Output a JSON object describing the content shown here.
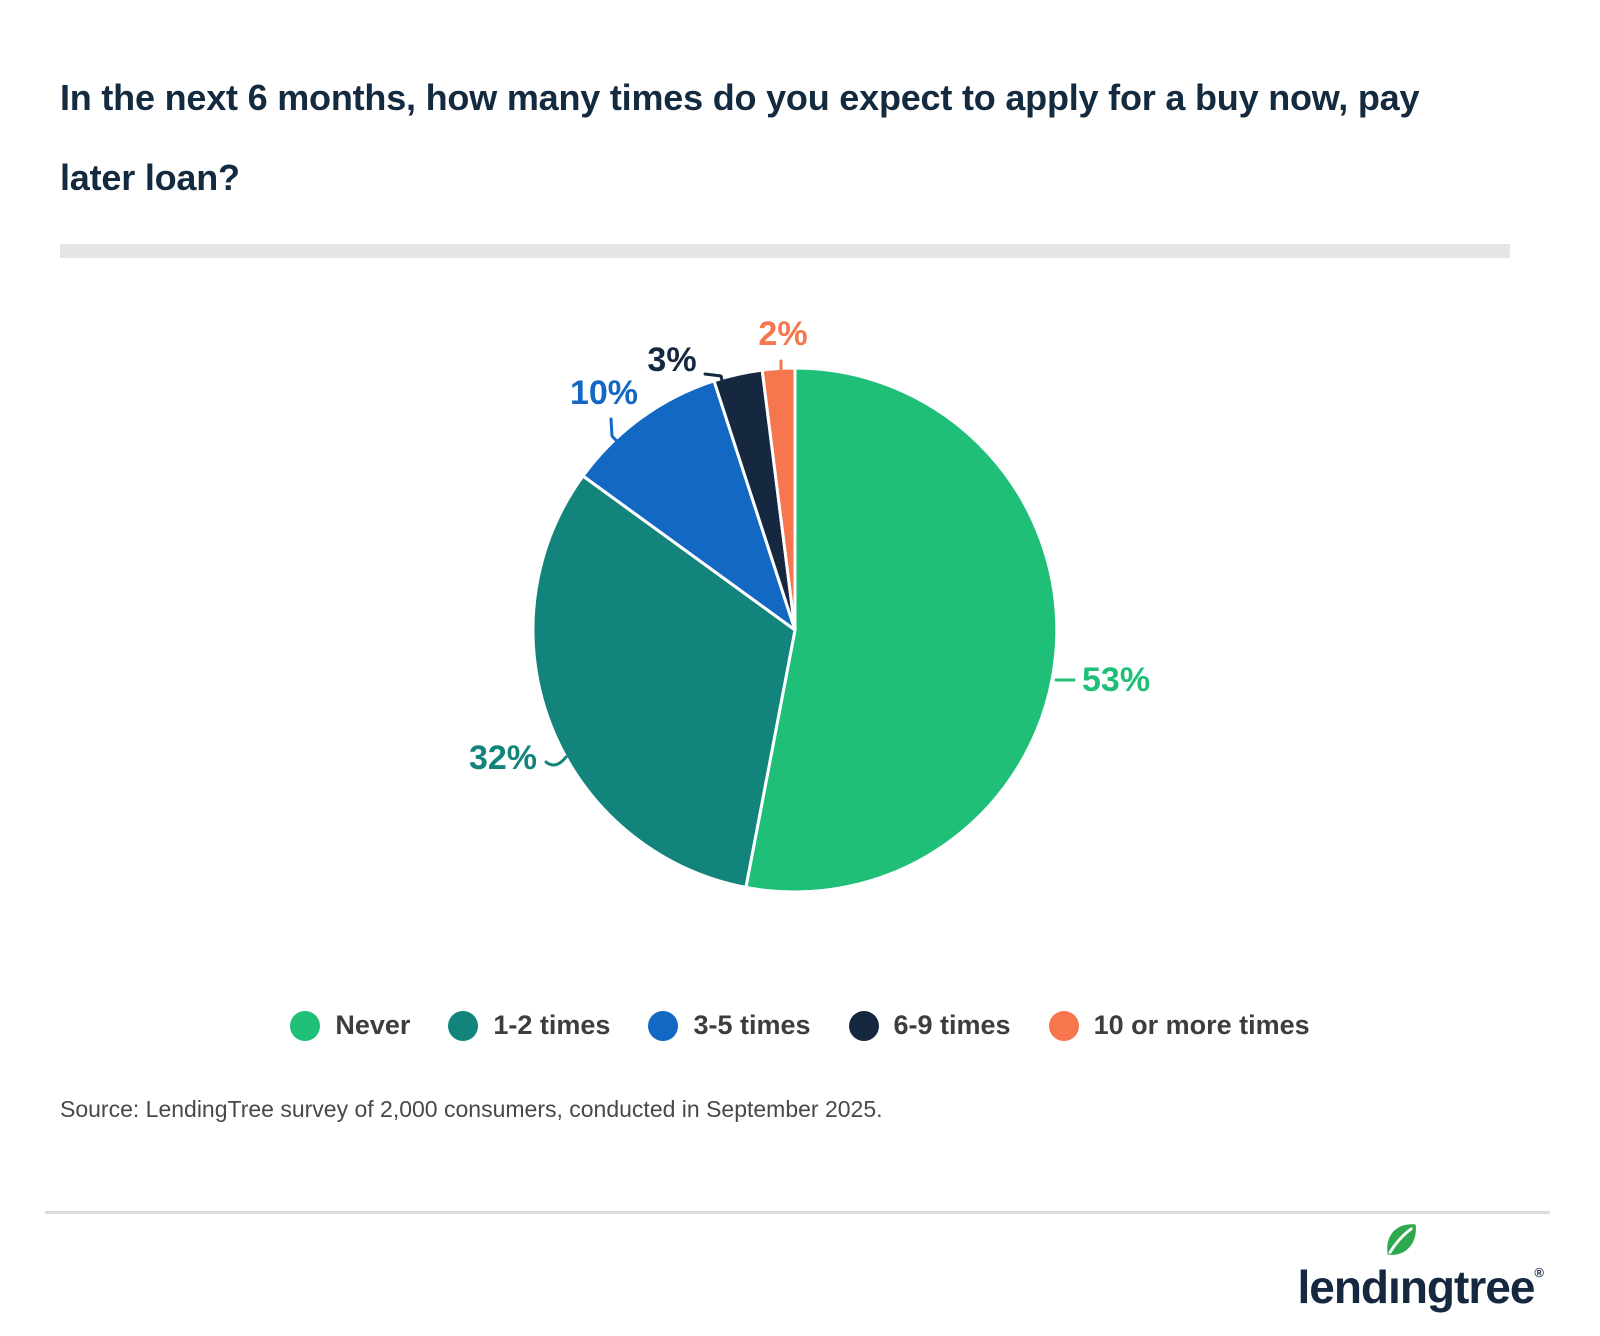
{
  "header": {
    "title_lines": [
      "In the next 6 months, how many times do you expect to apply for a buy now, pay",
      "later loan?"
    ]
  },
  "chart_data": {
    "type": "pie",
    "title": "In the next 6 months, how many times do you expect to apply for a buy now, pay later loan?",
    "categories": [
      "Never",
      "1-2 times",
      "3-5 times",
      "6-9 times",
      "10 or more times"
    ],
    "values": [
      53,
      32,
      10,
      3,
      2
    ],
    "unit": "%",
    "data_labels": [
      "53%",
      "32%",
      "10%",
      "3%",
      "2%"
    ],
    "colors": [
      "#20bf78",
      "#13847b",
      "#1268c2",
      "#152840",
      "#f6764e"
    ],
    "start_angle_deg": 0,
    "direction": "clockwise",
    "legend_position": "bottom",
    "grid": false
  },
  "source": {
    "text": "Source: LendingTree survey of 2,000 consumers, conducted in September 2025."
  },
  "footer": {
    "logo_text": "lendingtree",
    "registered_mark": "®"
  }
}
